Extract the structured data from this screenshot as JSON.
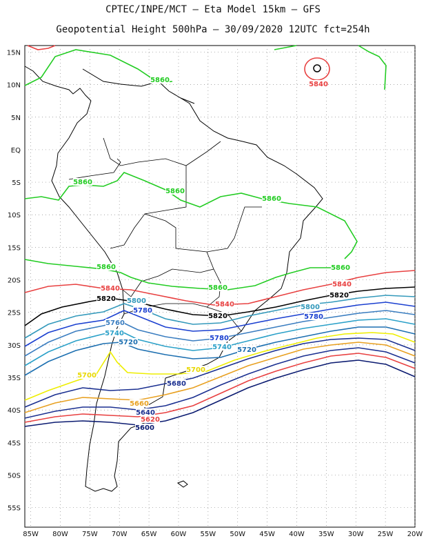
{
  "title_line1": "CPTEC/INPE/MCT –  Eta Model 15km – GFS",
  "title_line2": "Geopotential Height 500hPa – 30/09/2020 12UTC fct=254h",
  "lat_labels": [
    "15N",
    "10N",
    "5N",
    "EQ",
    "5S",
    "10S",
    "15S",
    "20S",
    "25S",
    "30S",
    "35S",
    "40S",
    "45S",
    "50S",
    "55S"
  ],
  "lon_labels": [
    "85W",
    "80W",
    "75W",
    "70W",
    "65W",
    "60W",
    "55W",
    "50W",
    "45W",
    "40W",
    "35W",
    "30W",
    "25W",
    "20W"
  ],
  "map_extent": {
    "lon": [
      -86,
      -20
    ],
    "lat": [
      -58,
      16
    ],
    "lat_ticks": [
      15,
      10,
      5,
      0,
      -5,
      -10,
      -15,
      -20,
      -25,
      -30,
      -35,
      -40,
      -45,
      -50,
      -55
    ],
    "lon_ticks": [
      -85,
      -80,
      -75,
      -70,
      -65,
      -60,
      -55,
      -50,
      -45,
      -40,
      -35,
      -30,
      -25,
      -20
    ]
  },
  "contour_levels": [
    {
      "value": "5860",
      "color": "#22cc22"
    },
    {
      "value": "5840",
      "color": "#e84040"
    },
    {
      "value": "5820",
      "color": "#000000"
    },
    {
      "value": "5800",
      "color": "#3399bb"
    },
    {
      "value": "5780",
      "color": "#1a3fd0"
    },
    {
      "value": "5760",
      "color": "#3a7dc0"
    },
    {
      "value": "5740",
      "color": "#2aa0c8"
    },
    {
      "value": "5720",
      "color": "#1c6fb0"
    },
    {
      "value": "5700",
      "color": "#eeee00"
    },
    {
      "value": "5680",
      "color": "#e8a020"
    },
    {
      "value": "5660",
      "color": "#e8a020"
    },
    {
      "value": "5640",
      "color": "#1a2f90"
    },
    {
      "value": "5620",
      "color": "#e84040"
    },
    {
      "value": "5600",
      "color": "#0a1a70"
    }
  ],
  "contour_labels": [
    {
      "text": "5860",
      "color": "#22cc22"
    },
    {
      "text": "5840",
      "color": "#e84040"
    },
    {
      "text": "5860",
      "color": "#22cc22"
    },
    {
      "text": "5860",
      "color": "#22cc22"
    },
    {
      "text": "5860",
      "color": "#22cc22"
    },
    {
      "text": "5860",
      "color": "#22cc22"
    },
    {
      "text": "5860",
      "color": "#22cc22"
    },
    {
      "text": "5860",
      "color": "#22cc22"
    },
    {
      "text": "5840",
      "color": "#e84040"
    },
    {
      "text": "5840",
      "color": "#e84040"
    },
    {
      "text": "5840",
      "color": "#e84040"
    },
    {
      "text": "5820",
      "color": "#000000"
    },
    {
      "text": "5820",
      "color": "#000000"
    },
    {
      "text": "5820",
      "color": "#000000"
    },
    {
      "text": "5800",
      "color": "#3399bb"
    },
    {
      "text": "5800",
      "color": "#3399bb"
    },
    {
      "text": "5780",
      "color": "#1a3fd0"
    },
    {
      "text": "5780",
      "color": "#1a3fd0"
    },
    {
      "text": "5780",
      "color": "#1a3fd0"
    },
    {
      "text": "5760",
      "color": "#3a7dc0"
    },
    {
      "text": "5740",
      "color": "#2aa0c8"
    },
    {
      "text": "5740",
      "color": "#2aa0c8"
    },
    {
      "text": "5720",
      "color": "#1c6fb0"
    },
    {
      "text": "5720",
      "color": "#1c6fb0"
    },
    {
      "text": "5700",
      "color": "#e8d800"
    },
    {
      "text": "5700",
      "color": "#e8d800"
    },
    {
      "text": "5680",
      "color": "#1a2f90"
    },
    {
      "text": "5660",
      "color": "#e8a020"
    },
    {
      "text": "5640",
      "color": "#1a2f90"
    },
    {
      "text": "5620",
      "color": "#e84040"
    },
    {
      "text": "5600",
      "color": "#0a1a70"
    }
  ]
}
